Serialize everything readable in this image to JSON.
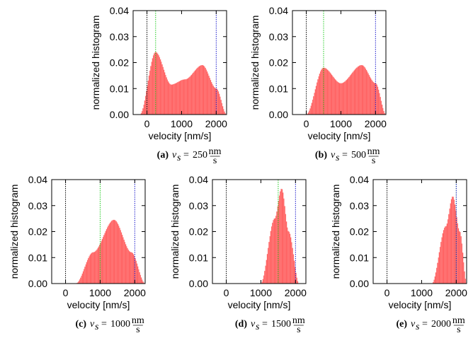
{
  "chart_data": [
    {
      "type": "bar",
      "panel_label": "(a)",
      "caption_var": "v",
      "caption_sub": "s",
      "caption_value": "250",
      "unit_num": "nm",
      "unit_den": "s",
      "xlabel": "velocity [nm/s]",
      "ylabel": "normalized histogram",
      "xlim": [
        -400,
        2300
      ],
      "ylim": [
        0,
        0.04
      ],
      "xticks": [
        0,
        1000,
        2000
      ],
      "yticks": [
        "0.00",
        "0.01",
        "0.02",
        "0.03",
        "0.04"
      ],
      "grid": false,
      "reference_lines": [
        {
          "x": 0,
          "color": "#000000"
        },
        {
          "x": 250,
          "color": "#22cc22"
        },
        {
          "x": 2000,
          "color": "#1a1acc"
        }
      ],
      "bar_color": "#ff5a5a",
      "distribution": {
        "x": [
          -200,
          250,
          700,
          1100,
          1600,
          2000,
          2300
        ],
        "y": [
          0.0,
          0.024,
          0.0115,
          0.0135,
          0.019,
          0.01,
          0.0
        ]
      }
    },
    {
      "type": "bar",
      "panel_label": "(b)",
      "caption_var": "v",
      "caption_sub": "s",
      "caption_value": "500",
      "unit_num": "nm",
      "unit_den": "s",
      "xlabel": "velocity [nm/s]",
      "ylabel": "normalized histogram",
      "xlim": [
        -400,
        2300
      ],
      "ylim": [
        0,
        0.04
      ],
      "xticks": [
        0,
        1000,
        2000
      ],
      "yticks": [
        "0.00",
        "0.01",
        "0.02",
        "0.03",
        "0.04"
      ],
      "grid": false,
      "reference_lines": [
        {
          "x": 0,
          "color": "#000000"
        },
        {
          "x": 500,
          "color": "#22cc22"
        },
        {
          "x": 2000,
          "color": "#1a1acc"
        }
      ],
      "bar_color": "#ff5a5a",
      "distribution": {
        "x": [
          0,
          500,
          1000,
          1600,
          2000,
          2300
        ],
        "y": [
          0.0,
          0.018,
          0.012,
          0.019,
          0.012,
          0.0
        ]
      }
    },
    {
      "type": "bar",
      "panel_label": "(c)",
      "caption_var": "v",
      "caption_sub": "s",
      "caption_value": "1000",
      "unit_num": "nm",
      "unit_den": "s",
      "xlabel": "velocity [nm/s]",
      "ylabel": "normalized histogram",
      "xlim": [
        -400,
        2300
      ],
      "ylim": [
        0,
        0.04
      ],
      "xticks": [
        0,
        1000,
        2000
      ],
      "yticks": [
        "0.00",
        "0.01",
        "0.02",
        "0.03",
        "0.04"
      ],
      "grid": false,
      "reference_lines": [
        {
          "x": 0,
          "color": "#000000"
        },
        {
          "x": 1000,
          "color": "#22cc22"
        },
        {
          "x": 2000,
          "color": "#1a1acc"
        }
      ],
      "bar_color": "#ff5a5a",
      "distribution": {
        "x": [
          300,
          800,
          1400,
          1900,
          2300
        ],
        "y": [
          0.0,
          0.012,
          0.0245,
          0.012,
          0.0
        ]
      }
    },
    {
      "type": "bar",
      "panel_label": "(d)",
      "caption_var": "v",
      "caption_sub": "s",
      "caption_value": "1500",
      "unit_num": "nm",
      "unit_den": "s",
      "xlabel": "velocity [nm/s]",
      "ylabel": "normalized histogram",
      "xlim": [
        -400,
        2300
      ],
      "ylim": [
        0,
        0.04
      ],
      "xticks": [
        0,
        1000,
        2000
      ],
      "yticks": [
        "0.00",
        "0.01",
        "0.02",
        "0.03",
        "0.04"
      ],
      "grid": false,
      "reference_lines": [
        {
          "x": 0,
          "color": "#000000"
        },
        {
          "x": 1500,
          "color": "#22cc22"
        },
        {
          "x": 2000,
          "color": "#1a1acc"
        }
      ],
      "bar_color": "#ff5a5a",
      "distribution": {
        "x": [
          1000,
          1400,
          1600,
          1800,
          2100
        ],
        "y": [
          0.0,
          0.025,
          0.0365,
          0.02,
          0.0
        ]
      }
    },
    {
      "type": "bar",
      "panel_label": "(e)",
      "caption_var": "v",
      "caption_sub": "s",
      "caption_value": "2000",
      "unit_num": "nm",
      "unit_den": "s",
      "xlabel": "velocity [nm/s]",
      "ylabel": "normalized histogram",
      "xlim": [
        -400,
        2300
      ],
      "ylim": [
        0,
        0.04
      ],
      "xticks": [
        0,
        1000,
        2000
      ],
      "yticks": [
        "0.00",
        "0.01",
        "0.02",
        "0.03",
        "0.04"
      ],
      "grid": false,
      "reference_lines": [
        {
          "x": 0,
          "color": "#000000"
        },
        {
          "x": 2000,
          "color": "#22cc22"
        },
        {
          "x": 2000,
          "color": "#1a1acc"
        }
      ],
      "bar_color": "#ff5a5a",
      "distribution": {
        "x": [
          1300,
          1700,
          1900,
          2100,
          2300
        ],
        "y": [
          0.0,
          0.022,
          0.0335,
          0.02,
          0.0
        ]
      }
    }
  ]
}
